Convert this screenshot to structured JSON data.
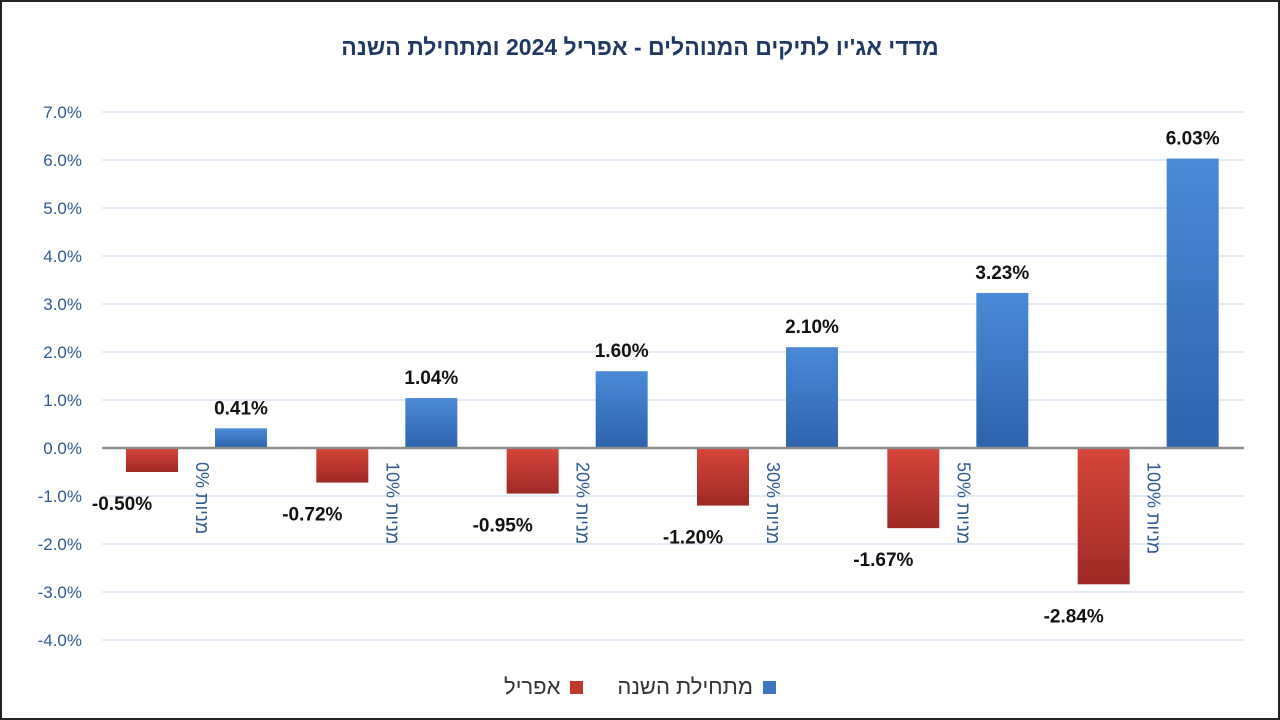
{
  "chart_data": {
    "type": "bar",
    "title": "מדדי אג'יו לתיקים המנוהלים  - אפריל  2024 ומתחילת השנה",
    "categories": [
      "0% מניות",
      "10% מניות",
      "20% מניות",
      "30% מניות",
      "50% מניות",
      "100% מניות"
    ],
    "series": [
      {
        "name": "אפריל",
        "values": [
          -0.5,
          -0.72,
          -0.95,
          -1.2,
          -1.67,
          -2.84
        ],
        "color": "#c0392b"
      },
      {
        "name": "מתחילת השנה",
        "values": [
          0.41,
          1.04,
          1.6,
          2.1,
          3.23,
          6.03
        ],
        "color": "#3a76c4"
      }
    ],
    "data_labels": {
      "אפריל": [
        "-0.50%",
        "-0.72%",
        "-0.95%",
        "-1.20%",
        "-1.67%",
        "-2.84%"
      ],
      "מתחילת השנה": [
        "0.41%",
        "1.04%",
        "1.60%",
        "2.10%",
        "3.23%",
        "6.03%"
      ]
    },
    "y_ticks": [
      7,
      6,
      5,
      4,
      3,
      2,
      1,
      0,
      -1,
      -2,
      -3,
      -4
    ],
    "y_tick_labels": [
      "7.0%",
      "6.0%",
      "5.0%",
      "4.0%",
      "3.0%",
      "2.0%",
      "1.0%",
      "0.0%",
      "-1.0%",
      "-2.0%",
      "-3.0%",
      "-4.0%"
    ],
    "ylim": [
      -4,
      7
    ],
    "grid": true,
    "legend_position": "bottom"
  },
  "legend": {
    "items": [
      {
        "label": "מתחילת השנה",
        "color": "#3a76c4"
      },
      {
        "label": "אפריל",
        "color": "#c0392b"
      }
    ]
  }
}
